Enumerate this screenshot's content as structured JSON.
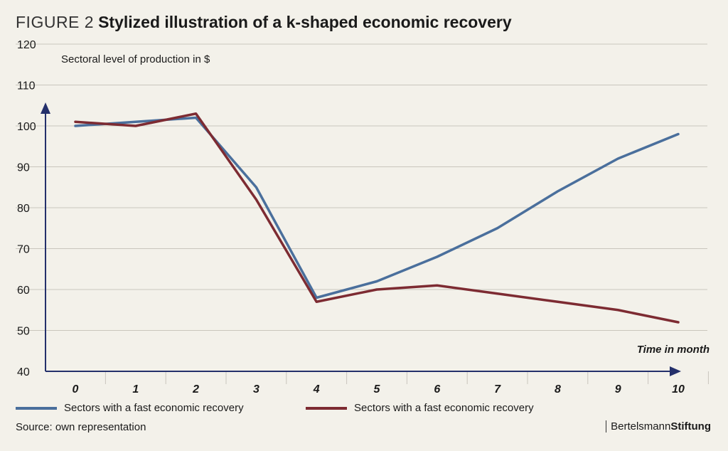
{
  "header": {
    "figure_label": "FIGURE 2",
    "title": "Stylized illustration of a k-shaped economic recovery"
  },
  "chart_data": {
    "type": "line",
    "title": "Stylized illustration of a k-shaped economic recovery",
    "ylabel": "Sectoral level of production in $",
    "xlabel": "Time in month",
    "x": [
      0,
      1,
      2,
      3,
      4,
      5,
      6,
      7,
      8,
      9,
      10
    ],
    "ylim": [
      40,
      120
    ],
    "yticks": [
      40,
      50,
      60,
      70,
      80,
      90,
      100,
      110,
      120
    ],
    "grid": true,
    "series": [
      {
        "name": "Sectors with a fast economic recovery",
        "color": "#4a6f9c",
        "values": [
          100,
          101,
          102,
          85,
          58,
          62,
          68,
          75,
          84,
          92,
          98
        ]
      },
      {
        "name": "Sectors with a fast economic recovery",
        "color": "#7d2b32",
        "values": [
          101,
          100,
          103,
          82,
          57,
          60,
          61,
          59,
          57,
          55,
          52
        ]
      }
    ]
  },
  "footer": {
    "source": "Source: own representation",
    "brand_part1": "Bertelsmann",
    "brand_part2": "Stiftung"
  },
  "colors": {
    "background": "#f3f1ea",
    "axis": "#24306b",
    "grid": "#c9c6bd"
  }
}
